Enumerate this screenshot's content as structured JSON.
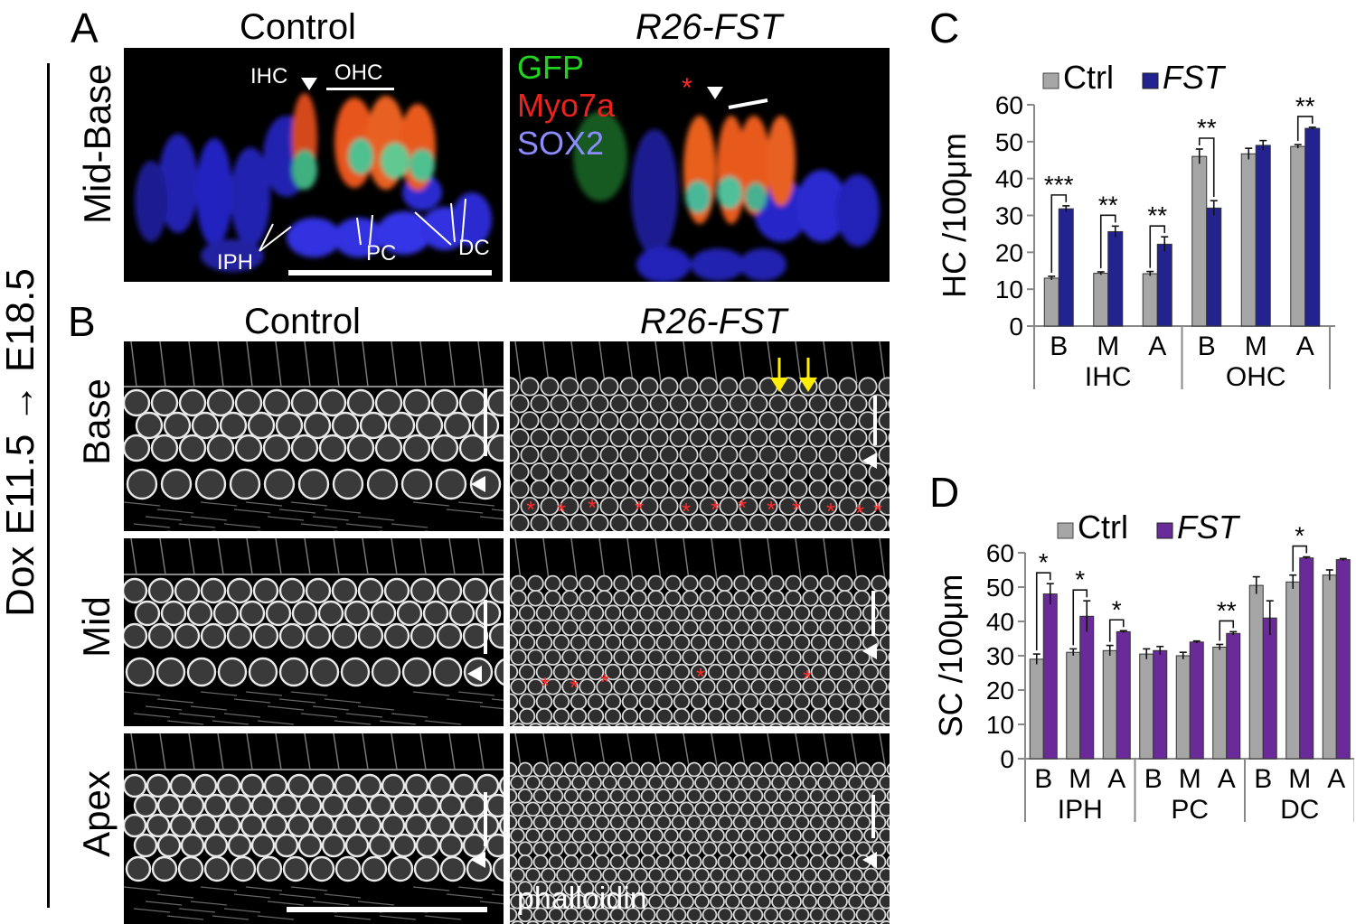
{
  "panels": {
    "A": "A",
    "B": "B",
    "C": "C",
    "D": "D"
  },
  "side_label": "Dox E11.5 → E18.5",
  "panel_a": {
    "col_control": "Control",
    "col_fst": "R26-FST",
    "row_label": "Mid-Base",
    "labels": {
      "ihc": "IHC",
      "ohc": "OHC",
      "iph": "IPH",
      "pc": "PC",
      "dc": "DC",
      "gfp": "GFP",
      "myo7a": "Myo7a",
      "sox2": "SOX2",
      "star": "*"
    }
  },
  "panel_b": {
    "col_control": "Control",
    "col_fst": "R26-FST",
    "rows": [
      "Base",
      "Mid",
      "Apex"
    ],
    "stain": "phalloidin"
  },
  "colors": {
    "ctrl": "#a6a6a6",
    "fst_c": "#23238f",
    "fst_d": "#6a2a9a",
    "gfp": "#1fd31f",
    "myo7a": "#e8221d",
    "sox2": "#8c8cff",
    "star": "#ff2a2a",
    "arrow": "#ffee00"
  },
  "chart_data": [
    {
      "type": "bar",
      "panel": "C",
      "ylabel": "HC /100μm",
      "ylim": [
        0,
        60
      ],
      "yticks": [
        "0",
        "10",
        "20",
        "30",
        "40",
        "50",
        "60"
      ],
      "legend": [
        {
          "label": "Ctrl",
          "italic": false
        },
        {
          "label": "FST",
          "italic": true
        }
      ],
      "groups": [
        "IHC",
        "OHC"
      ],
      "categories": [
        "B",
        "M",
        "A",
        "B",
        "M",
        "A"
      ],
      "series": [
        {
          "name": "Ctrl",
          "values": [
            13,
            14.3,
            14.2,
            46,
            46.7,
            48.7
          ],
          "errors": [
            0.5,
            0.4,
            0.6,
            2.0,
            1.5,
            0.5
          ]
        },
        {
          "name": "FST",
          "values": [
            31.8,
            25.6,
            22.2,
            32,
            49,
            53.6
          ],
          "errors": [
            0.8,
            1.5,
            2.0,
            2.0,
            1.3,
            0.3
          ]
        }
      ],
      "significance": [
        "***",
        "**",
        "**",
        "**",
        "",
        "**"
      ]
    },
    {
      "type": "bar",
      "panel": "D",
      "ylabel": "SC /100μm",
      "ylim": [
        0,
        60
      ],
      "yticks": [
        "0",
        "10",
        "20",
        "30",
        "40",
        "50",
        "60"
      ],
      "legend": [
        {
          "label": "Ctrl",
          "italic": false
        },
        {
          "label": "FST",
          "italic": true
        }
      ],
      "groups": [
        "IPH",
        "PC",
        "DC"
      ],
      "categories": [
        "B",
        "M",
        "A",
        "B",
        "M",
        "A",
        "B",
        "M",
        "A"
      ],
      "series": [
        {
          "name": "Ctrl",
          "values": [
            29,
            31,
            31.5,
            30.5,
            30,
            32.5,
            50.5,
            51.5,
            53.5
          ],
          "errors": [
            1.5,
            1.0,
            1.5,
            1.5,
            1.0,
            0.8,
            2.5,
            2.0,
            1.5
          ]
        },
        {
          "name": "FST",
          "values": [
            48,
            41.5,
            37,
            31.5,
            34,
            36.5,
            41,
            58.5,
            58
          ],
          "errors": [
            3.0,
            4.5,
            0.3,
            1.2,
            0.3,
            0.5,
            5.0,
            0.3,
            0.3
          ]
        }
      ],
      "significance": [
        "*",
        "*",
        "*",
        "",
        "",
        "**",
        "",
        "*",
        ""
      ]
    }
  ]
}
